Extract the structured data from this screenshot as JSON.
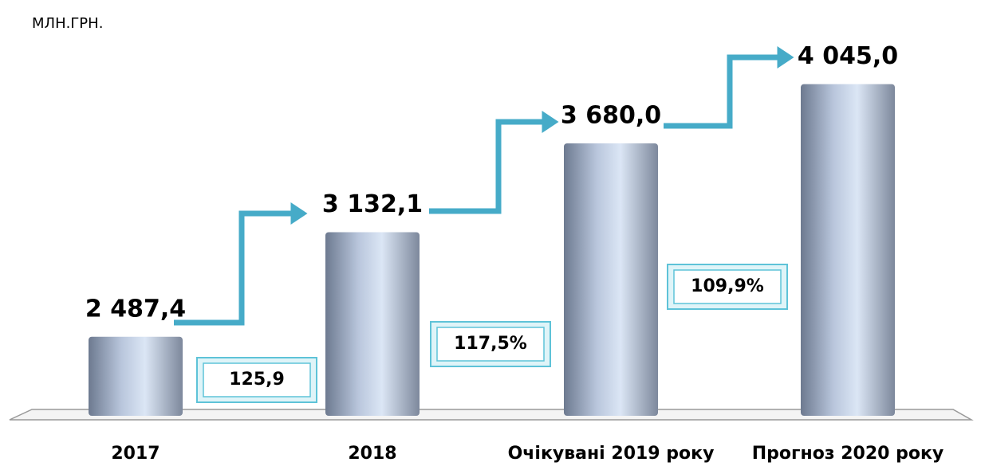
{
  "chart_data": {
    "type": "bar",
    "unit": "МЛН.ГРН.",
    "categories": [
      "2017",
      "2018",
      "Очікувані 2019 року",
      "Прогноз 2020 року"
    ],
    "values": [
      2487.4,
      3132.1,
      3680.0,
      4045.0
    ],
    "value_labels": [
      "2 487,4",
      "3 132,1",
      "3 680,0",
      "4 045,0"
    ],
    "ylim": [
      2000,
      4500
    ],
    "growth": {
      "values": [
        125.9,
        117.5,
        109.9
      ],
      "value_labels": [
        "125,9",
        "117,5%",
        "109,9%"
      ]
    }
  }
}
